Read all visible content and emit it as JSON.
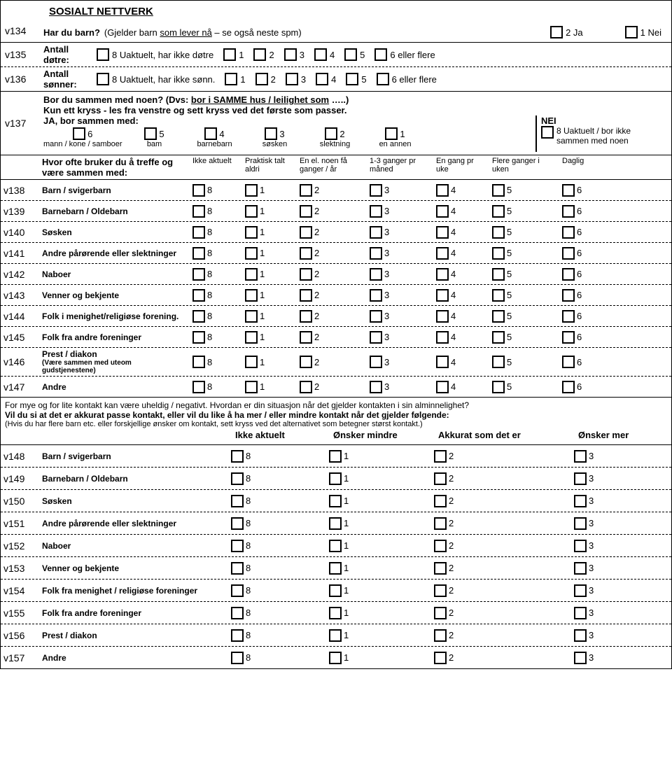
{
  "title": "SOSIALT NETTVERK",
  "v134": {
    "code": "v134",
    "q": "Har du barn?",
    "note1": "(Gjelder barn ",
    "note_u": "som lever nå",
    "note2": " – se også neste spm)",
    "opt_yes": "2 Ja",
    "opt_no": "1 Nei"
  },
  "v135": {
    "code": "v135",
    "label": "Antall døtre:",
    "na": "8 Uaktuelt, har ikke døtre",
    "n1": "1",
    "n2": "2",
    "n3": "3",
    "n4": "4",
    "n5": "5",
    "n6": "6 eller flere"
  },
  "v136": {
    "code": "v136",
    "label": "Antall sønner:",
    "na": "8 Uaktuelt, har ikke sønn.",
    "n1": "1",
    "n2": "2",
    "n3": "3",
    "n4": "4",
    "n5": "5",
    "n6": "6 eller flere"
  },
  "v137": {
    "code": "v137",
    "q1a": "Bor du sammen med noen? (Dvs: ",
    "q1u": "bor i SAMME hus / leilighet som",
    "q1b": " …..)",
    "q2": "Kun ett kryss - les fra venstre og sett kryss ved det første som passer.",
    "yes": "JA, bor sammen med:",
    "no": "NEI",
    "opts": [
      {
        "n": "6",
        "l": "mann / kone / samboer"
      },
      {
        "n": "5",
        "l": "bam"
      },
      {
        "n": "4",
        "l": "barnebarn"
      },
      {
        "n": "3",
        "l": "søsken"
      },
      {
        "n": "2",
        "l": "slektning"
      },
      {
        "n": "1",
        "l": "en annen"
      }
    ],
    "nei_n": "8 Uaktuelt / bor ikke",
    "nei_l": "sammen med noen"
  },
  "freq_q": "Hvor ofte bruker du å treffe og være sammen med:",
  "freq_cols": [
    "Ikke aktuelt",
    "Praktisk talt aldri",
    "En el. noen få ganger / år",
    "1-3 ganger pr måned",
    "En gang pr uke",
    "Flere ganger i uken",
    "Daglig"
  ],
  "freq_vals": [
    "8",
    "1",
    "2",
    "3",
    "4",
    "5",
    "6"
  ],
  "freq_rows": [
    {
      "code": "v138",
      "l": "Barn / svigerbarn"
    },
    {
      "code": "v139",
      "l": "Barnebarn / Oldebarn"
    },
    {
      "code": "v140",
      "l": "Søsken"
    },
    {
      "code": "v141",
      "l": "Andre pårørende eller slektninger"
    },
    {
      "code": "v142",
      "l": "Naboer"
    },
    {
      "code": "v143",
      "l": "Venner og bekjente"
    },
    {
      "code": "v144",
      "l": "Folk i menighet/religiøse forening."
    },
    {
      "code": "v145",
      "l": "Folk fra andre foreninger"
    },
    {
      "code": "v146",
      "l": "Prest / diakon",
      "sub": "(Være sammen med uteom gudstjenestene)"
    },
    {
      "code": "v147",
      "l": "Andre"
    }
  ],
  "intro": {
    "p1": "For mye og for lite kontakt kan være uheldig / negativt. Hvordan er din situasjon når det gjelder kontakten i sin alminnelighet?",
    "p2": "Vil du si at det er akkurat passe kontakt, eller vil du like å ha mer / eller mindre kontakt når det gjelder følgende:",
    "p3": "(Hvis du har flere barn etc. eller forskjellige ønsker om kontakt, sett kryss ved det alternativet som betegner størst kontakt.)"
  },
  "k_cols": [
    "Ikke aktuelt",
    "Ønsker mindre",
    "Akkurat som det er",
    "Ønsker mer"
  ],
  "k_vals": [
    "8",
    "1",
    "2",
    "3"
  ],
  "k_rows": [
    {
      "code": "v148",
      "l": "Barn / svigerbarn"
    },
    {
      "code": "v149",
      "l": "Barnebarn / Oldebarn"
    },
    {
      "code": "v150",
      "l": "Søsken"
    },
    {
      "code": "v151",
      "l": "Andre pårørende eller slektninger"
    },
    {
      "code": "v152",
      "l": "Naboer"
    },
    {
      "code": "v153",
      "l": "Venner og bekjente"
    },
    {
      "code": "v154",
      "l": "Folk fra menighet / religiøse foreninger"
    },
    {
      "code": "v155",
      "l": "Folk fra andre foreninger"
    },
    {
      "code": "v156",
      "l": "Prest / diakon"
    },
    {
      "code": "v157",
      "l": "Andre"
    }
  ]
}
